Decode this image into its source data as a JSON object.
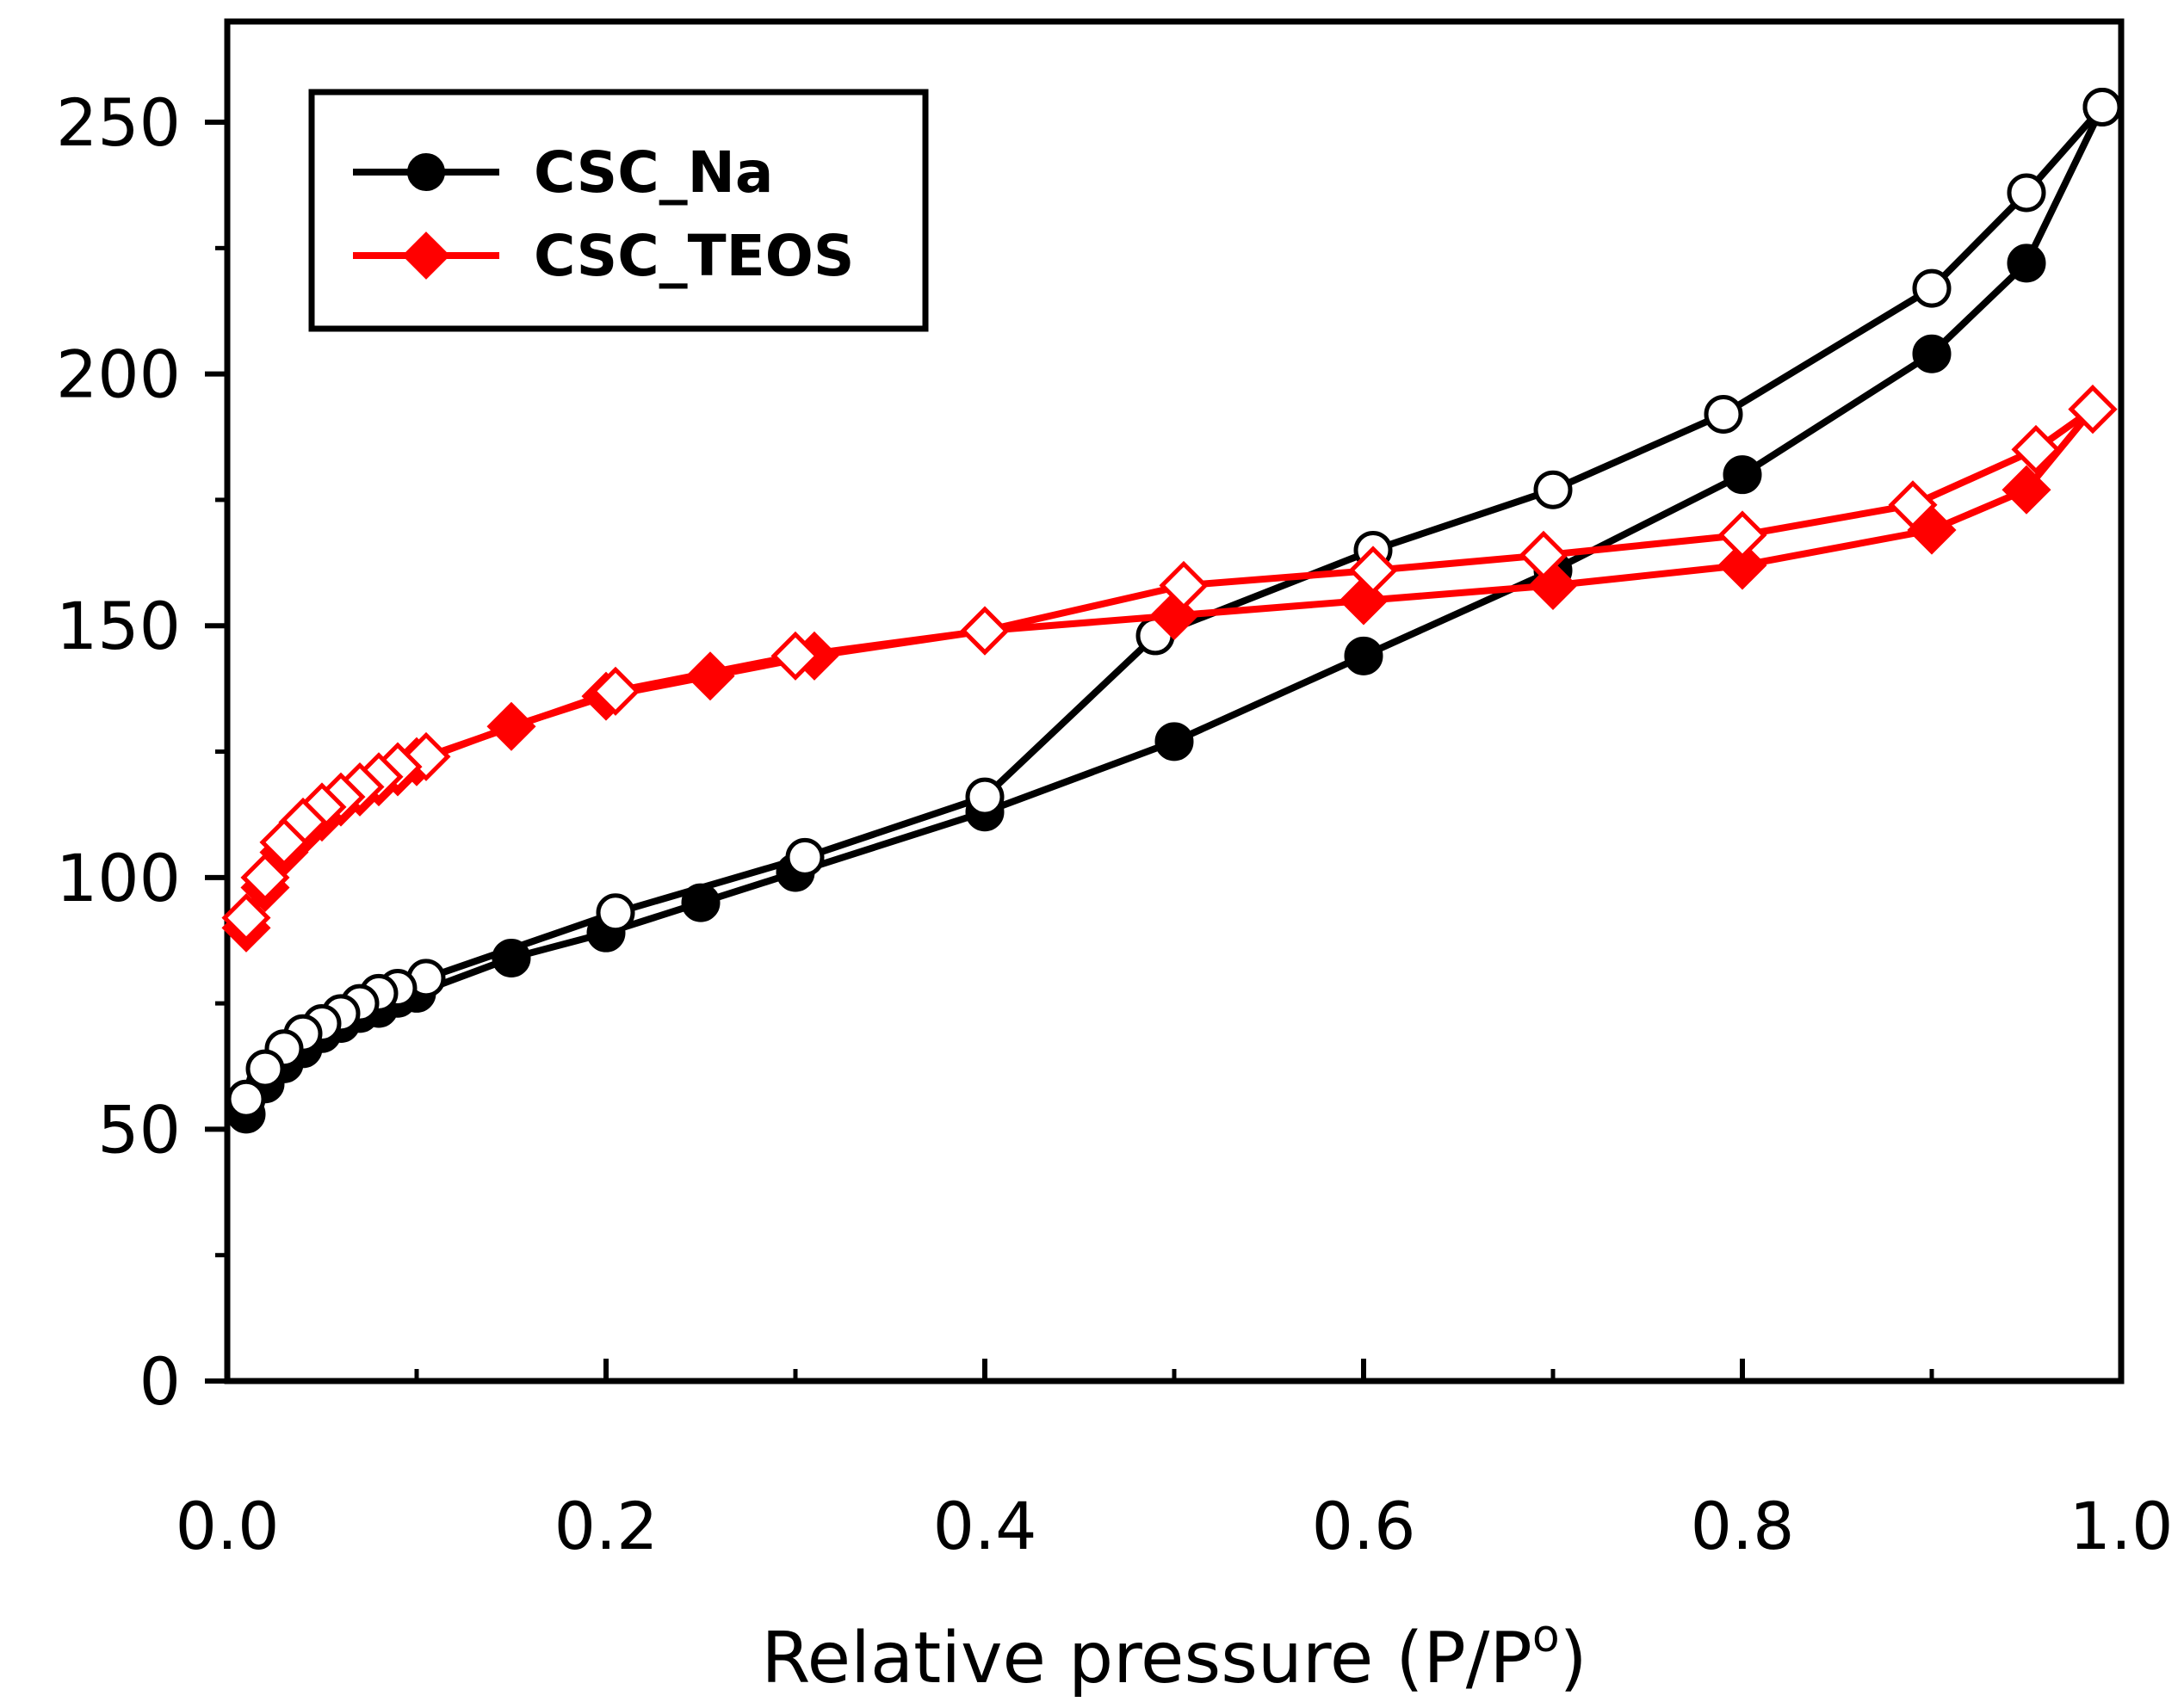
{
  "chart_data": {
    "type": "line",
    "title": "",
    "xlabel": "Relative pressure (P/P",
    "xlabel_superscript": "o",
    "xlabel_suffix": ")",
    "ylabel": "",
    "xlim": [
      0,
      1
    ],
    "ylim": [
      0,
      270
    ],
    "xticks": [
      0,
      0.2,
      0.4,
      0.6,
      0.8,
      1.0
    ],
    "xtick_labels": [
      "0.0",
      "0.2",
      "0.4",
      "0.6",
      "0.8",
      "1.0"
    ],
    "yticks": [
      0,
      50,
      100,
      150,
      200,
      250
    ],
    "ytick_labels": [
      "0",
      "50",
      "100",
      "150",
      "200",
      "250"
    ],
    "grid": false,
    "legend_position": "top-left",
    "legend": [
      {
        "label": "CSC_Na",
        "color": "#000000",
        "marker": "circle"
      },
      {
        "label": "CSC_TEOS",
        "color": "#ff0000",
        "marker": "diamond"
      }
    ],
    "series": [
      {
        "name": "CSC_Na adsorption",
        "color": "#000000",
        "marker": "circle",
        "filled": true,
        "x": [
          0.01,
          0.02,
          0.03,
          0.04,
          0.05,
          0.06,
          0.07,
          0.08,
          0.09,
          0.1,
          0.15,
          0.2,
          0.25,
          0.3,
          0.4,
          0.5,
          0.6,
          0.7,
          0.8,
          0.9,
          0.95,
          0.99
        ],
        "y": [
          53,
          59,
          63,
          66,
          69,
          71,
          73,
          74,
          76,
          77,
          84,
          89,
          95,
          101,
          113,
          127,
          144,
          161,
          180,
          204,
          222,
          253
        ]
      },
      {
        "name": "CSC_Na desorption",
        "color": "#000000",
        "marker": "circle",
        "filled": false,
        "x": [
          0.99,
          0.95,
          0.9,
          0.79,
          0.7,
          0.605,
          0.49,
          0.4,
          0.305,
          0.205,
          0.105,
          0.09,
          0.08,
          0.07,
          0.06,
          0.05,
          0.04,
          0.03,
          0.02,
          0.01
        ],
        "y": [
          253,
          236,
          217,
          192,
          177,
          165,
          148,
          116,
          104,
          93,
          80,
          78,
          77,
          75,
          73,
          71,
          69,
          66,
          62,
          56
        ]
      },
      {
        "name": "CSC_TEOS adsorption",
        "color": "#ff0000",
        "marker": "diamond",
        "filled": true,
        "x": [
          0.01,
          0.02,
          0.03,
          0.04,
          0.05,
          0.06,
          0.07,
          0.08,
          0.09,
          0.1,
          0.15,
          0.2,
          0.255,
          0.31,
          0.4,
          0.5,
          0.6,
          0.7,
          0.8,
          0.9,
          0.95,
          0.985
        ],
        "y": [
          90,
          98,
          105,
          109,
          112,
          115,
          117,
          119,
          121,
          123,
          130,
          136,
          140,
          144,
          149,
          152,
          155,
          158,
          162,
          169,
          177,
          193
        ]
      },
      {
        "name": "CSC_TEOS desorption",
        "color": "#ff0000",
        "marker": "diamond",
        "filled": false,
        "x": [
          0.985,
          0.955,
          0.89,
          0.8,
          0.695,
          0.605,
          0.505,
          0.4,
          0.3,
          0.205,
          0.105,
          0.09,
          0.08,
          0.07,
          0.06,
          0.05,
          0.04,
          0.03,
          0.02,
          0.01
        ],
        "y": [
          193,
          185,
          174,
          168,
          164,
          161,
          158,
          149,
          144,
          137,
          124,
          122,
          120,
          118,
          116,
          114,
          111,
          107,
          100,
          92
        ]
      }
    ]
  }
}
